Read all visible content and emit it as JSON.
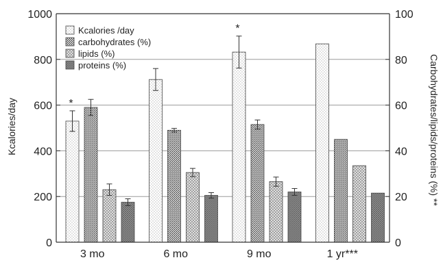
{
  "chart_data": {
    "type": "bar",
    "categories": [
      "3 mo",
      "6 mo",
      "9 mo",
      "1 yr***"
    ],
    "left_axis": {
      "label": "Kcalories/day",
      "range": [
        0,
        1000
      ],
      "ticks": [
        "0",
        "200",
        "400",
        "600",
        "800",
        "1000"
      ]
    },
    "right_axis": {
      "label": "Carbohydrates/lipids/proteins (%) **",
      "range": [
        0,
        100
      ],
      "ticks": [
        "0",
        "20",
        "40",
        "60",
        "80",
        "100"
      ]
    },
    "grid": true,
    "legend_position": "top-left",
    "series": [
      {
        "name": "Kcalories /day",
        "axis": "left",
        "values": [
          530,
          712,
          832,
          868
        ],
        "errors": [
          45,
          48,
          70,
          null
        ],
        "pattern": "dots",
        "color": "#f2f2f2"
      },
      {
        "name": "carbohydrates   (%)",
        "axis": "right",
        "values": [
          59,
          49,
          51.5,
          45
        ],
        "errors": [
          3.5,
          0.8,
          2,
          null
        ],
        "pattern": "dense-dots",
        "color": "#9a9a9a"
      },
      {
        "name": "lipids  (%)",
        "axis": "right",
        "values": [
          23,
          30.5,
          26.5,
          33.5
        ],
        "errors": [
          2.5,
          1.8,
          2,
          null
        ],
        "pattern": "crosshatch",
        "color": "#c4c4c4"
      },
      {
        "name": "proteins   (%)",
        "axis": "right",
        "values": [
          17.5,
          20.5,
          22,
          21.5
        ],
        "errors": [
          1.5,
          1.2,
          1.5,
          null
        ],
        "pattern": "dark-crosshatch",
        "color": "#8a8a8a"
      }
    ],
    "annotations": [
      {
        "text": "*",
        "category": "3 mo",
        "series": "Kcalories /day"
      },
      {
        "text": "*",
        "category": "9 mo",
        "series": "Kcalories /day"
      }
    ]
  }
}
